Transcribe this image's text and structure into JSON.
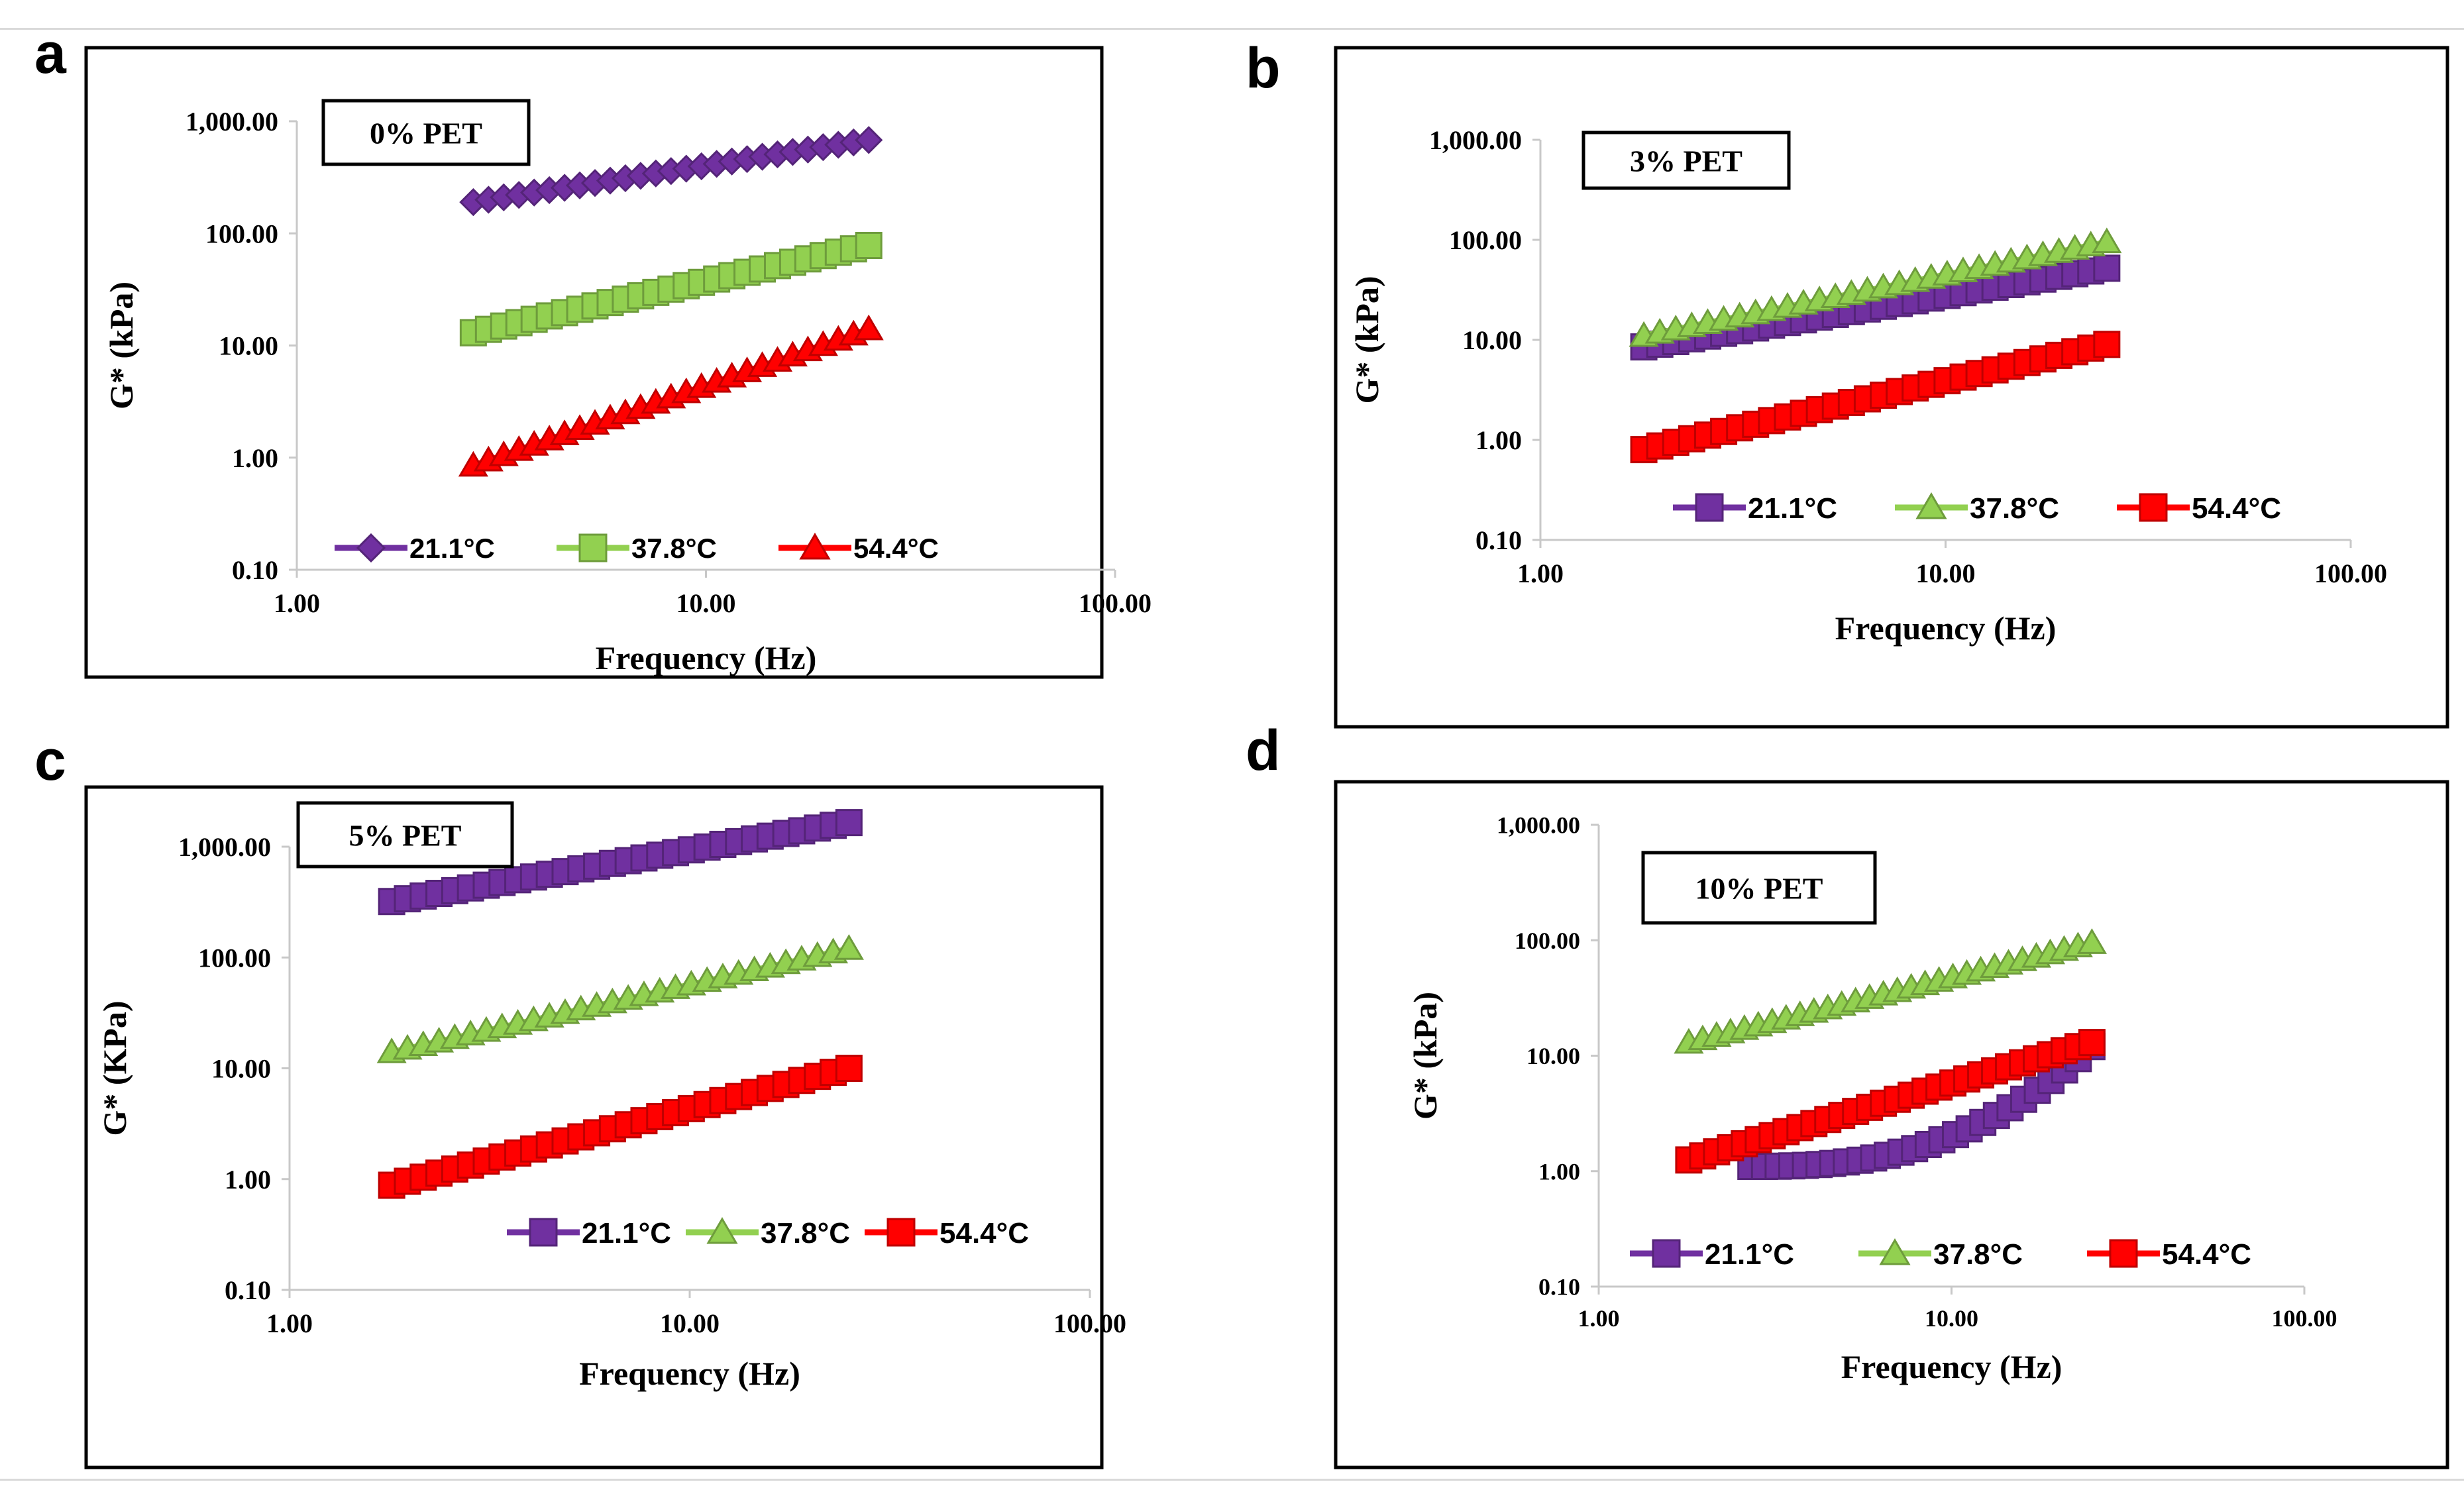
{
  "figure": {
    "panel_letters": [
      "a",
      "b",
      "c",
      "d"
    ],
    "colors": {
      "c21": "#7030A0",
      "c37": "#92D050",
      "c54": "#FF0000",
      "axis": "#c8c8c8",
      "frame": "#000000"
    }
  },
  "chart_data": [
    {
      "type": "scatter",
      "panel": "a",
      "title": "0% PET",
      "xlabel": "Frequency (Hz)",
      "ylabel": "G* (kPa)",
      "x_scale": "log",
      "y_scale": "log",
      "xlim": [
        1,
        100
      ],
      "ylim": [
        0.1,
        1000
      ],
      "x_ticks": [
        "1.00",
        "10.00",
        "100.00"
      ],
      "y_ticks": [
        "0.10",
        "1.00",
        "10.00",
        "100.00",
        "1,000.00"
      ],
      "legend": "bottom",
      "series": [
        {
          "name": "21.1°C",
          "color": "#7030A0",
          "marker": "diamond",
          "x_range": [
            2.7,
            25
          ],
          "y_range": [
            190,
            680
          ],
          "n_points": 27
        },
        {
          "name": "37.8°C",
          "color": "#92D050",
          "marker": "square",
          "x_range": [
            2.7,
            25
          ],
          "y_range": [
            13,
            78
          ],
          "n_points": 27
        },
        {
          "name": "54.4°C",
          "color": "#FF0000",
          "marker": "triangle",
          "x_range": [
            2.7,
            25
          ],
          "y_range": [
            0.85,
            14
          ],
          "n_points": 27
        }
      ]
    },
    {
      "type": "scatter",
      "panel": "b",
      "title": "3% PET",
      "xlabel": "Frequency (Hz)",
      "ylabel": "G* (kPa)",
      "x_scale": "log",
      "y_scale": "log",
      "xlim": [
        1,
        100
      ],
      "ylim": [
        0.1,
        1000
      ],
      "x_ticks": [
        "1.00",
        "10.00",
        "100.00"
      ],
      "y_ticks": [
        "0.10",
        "1.00",
        "10.00",
        "100.00",
        "1,000.00"
      ],
      "legend": "bottom",
      "series": [
        {
          "name": "21.1°C",
          "color": "#7030A0",
          "marker": "square",
          "x_range": [
            1.8,
            25
          ],
          "y_range": [
            8.5,
            52
          ],
          "n_points": 30
        },
        {
          "name": "37.8°C",
          "color": "#92D050",
          "marker": "triangle",
          "x_range": [
            1.8,
            25
          ],
          "y_range": [
            11,
            95
          ],
          "n_points": 30
        },
        {
          "name": "54.4°C",
          "color": "#FF0000",
          "marker": "square",
          "x_range": [
            1.8,
            25
          ],
          "y_range": [
            0.8,
            9
          ],
          "n_points": 30
        }
      ]
    },
    {
      "type": "scatter",
      "panel": "c",
      "title": "5% PET",
      "xlabel": "Frequency (Hz)",
      "ylabel": "G* (KPa)",
      "x_scale": "log",
      "y_scale": "log",
      "xlim": [
        1,
        100
      ],
      "ylim": [
        0.1,
        1000
      ],
      "x_ticks": [
        "1.00",
        "10.00",
        "100.00"
      ],
      "y_ticks": [
        "0.10",
        "1.00",
        "10.00",
        "100.00",
        "1,000.00"
      ],
      "legend": "bottom-right",
      "series": [
        {
          "name": "21.1°C",
          "color": "#7030A0",
          "marker": "square",
          "x_range": [
            1.8,
            25
          ],
          "y_range": [
            320,
            1650
          ],
          "n_points": 30
        },
        {
          "name": "37.8°C",
          "color": "#92D050",
          "marker": "triangle",
          "x_range": [
            1.8,
            25
          ],
          "y_range": [
            14,
            120
          ],
          "n_points": 30
        },
        {
          "name": "54.4°C",
          "color": "#FF0000",
          "marker": "square",
          "x_range": [
            1.8,
            25
          ],
          "y_range": [
            0.88,
            10
          ],
          "n_points": 30
        }
      ]
    },
    {
      "type": "scatter",
      "panel": "d",
      "title": "10% PET",
      "xlabel": "Frequency (Hz)",
      "ylabel": "G* (kPa)",
      "x_scale": "log",
      "y_scale": "log",
      "xlim": [
        1,
        100
      ],
      "ylim": [
        0.1,
        1000
      ],
      "x_ticks": [
        "1.00",
        "10.00",
        "100.00"
      ],
      "y_ticks": [
        "0.10",
        "1.00",
        "10.00",
        "100.00",
        "1,000.00"
      ],
      "legend": "bottom",
      "series": [
        {
          "name": "21.1°C",
          "color": "#7030A0",
          "marker": "square",
          "shape": "convex",
          "x_range": [
            2.7,
            25
          ],
          "y_range": [
            1.1,
            12
          ],
          "n_points": 26
        },
        {
          "name": "37.8°C",
          "color": "#92D050",
          "marker": "triangle",
          "x_range": [
            1.8,
            25
          ],
          "y_range": [
            13,
            95
          ],
          "n_points": 30
        },
        {
          "name": "54.4°C",
          "color": "#FF0000",
          "marker": "square",
          "x_range": [
            1.8,
            25
          ],
          "y_range": [
            1.25,
            13
          ],
          "n_points": 30
        }
      ]
    }
  ]
}
